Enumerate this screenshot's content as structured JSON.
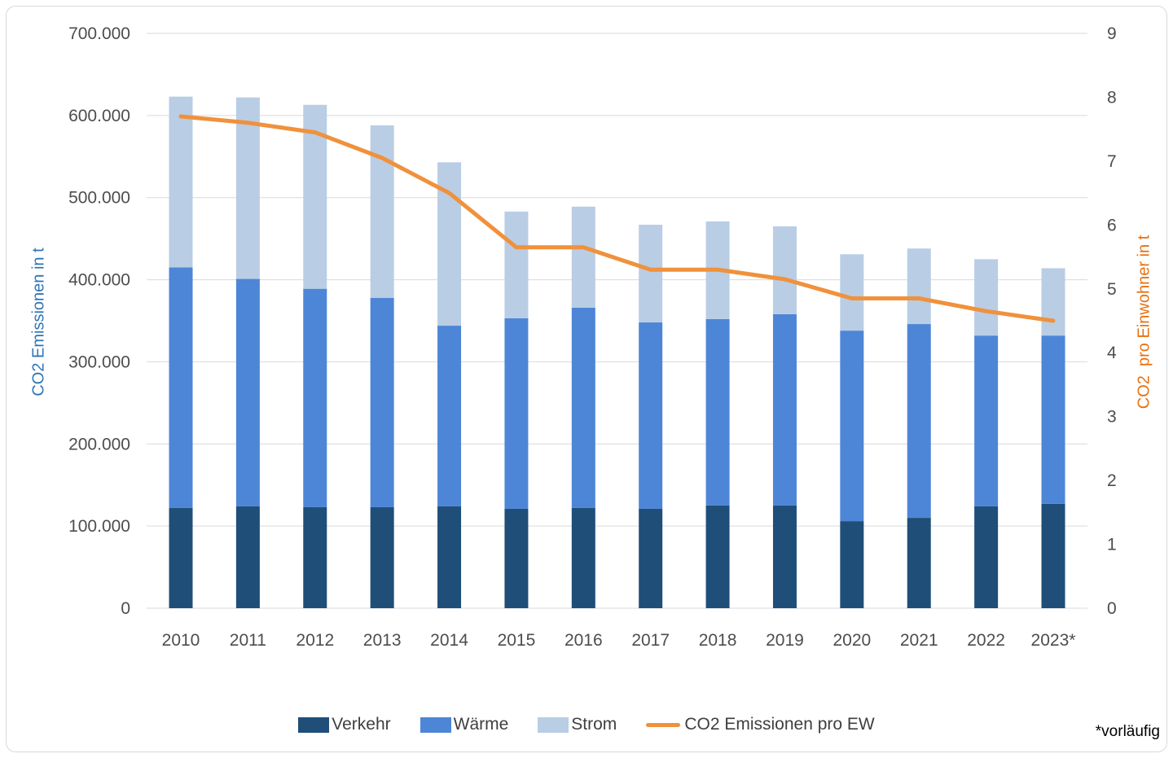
{
  "chart_data": {
    "type": "bar",
    "subtype": "stacked-column-with-line",
    "title": "",
    "categories": [
      "2010",
      "2011",
      "2012",
      "2013",
      "2014",
      "2015",
      "2016",
      "2017",
      "2018",
      "2019",
      "2020",
      "2021",
      "2022",
      "2023*"
    ],
    "series": [
      {
        "name": "Verkehr",
        "type": "bar",
        "axis": "left",
        "color": "#1F4E79",
        "values": [
          122000,
          124000,
          123000,
          123000,
          124000,
          121000,
          122000,
          121000,
          125000,
          125000,
          106000,
          110000,
          124000,
          127000
        ]
      },
      {
        "name": "Wärme",
        "type": "bar",
        "axis": "left",
        "color": "#4D86D6",
        "values": [
          293000,
          277000,
          266000,
          255000,
          220000,
          232000,
          244000,
          227000,
          227000,
          233000,
          232000,
          236000,
          208000,
          205000
        ]
      },
      {
        "name": "Strom",
        "type": "bar",
        "axis": "left",
        "color": "#B9CDE5",
        "values": [
          208000,
          221000,
          224000,
          210000,
          199000,
          130000,
          123000,
          119000,
          119000,
          107000,
          93000,
          92000,
          93000,
          82000
        ]
      },
      {
        "name": "CO2 Emissionen pro EW",
        "type": "line",
        "axis": "right",
        "color": "#F0913B",
        "values": [
          7.7,
          7.6,
          7.45,
          7.05,
          6.5,
          5.65,
          5.65,
          5.3,
          5.3,
          5.15,
          4.85,
          4.85,
          4.65,
          4.5
        ]
      }
    ],
    "stacked_totals": [
      623000,
      622000,
      613000,
      588000,
      543000,
      483000,
      489000,
      467000,
      471000,
      465000,
      431000,
      438000,
      425000,
      414000
    ],
    "left_axis": {
      "title": "CO2 Emissionen in t",
      "title_color": "#2E75B6",
      "min": 0,
      "max": 700000,
      "step": 100000,
      "tick_labels": [
        "0",
        "100.000",
        "200.000",
        "300.000",
        "400.000",
        "500.000",
        "600.000",
        "700.000"
      ]
    },
    "right_axis": {
      "title": "CO2  pro Einwohner in t",
      "title_color": "#E8700E",
      "min": 0,
      "max": 9,
      "step": 1,
      "tick_labels": [
        "0",
        "1",
        "2",
        "3",
        "4",
        "5",
        "6",
        "7",
        "8",
        "9"
      ]
    },
    "grid": true,
    "gridline_color": "#D9D9D9",
    "tick_label_color": "#4D4D4D",
    "legend_position": "bottom",
    "footnote": "*vorläufig"
  }
}
